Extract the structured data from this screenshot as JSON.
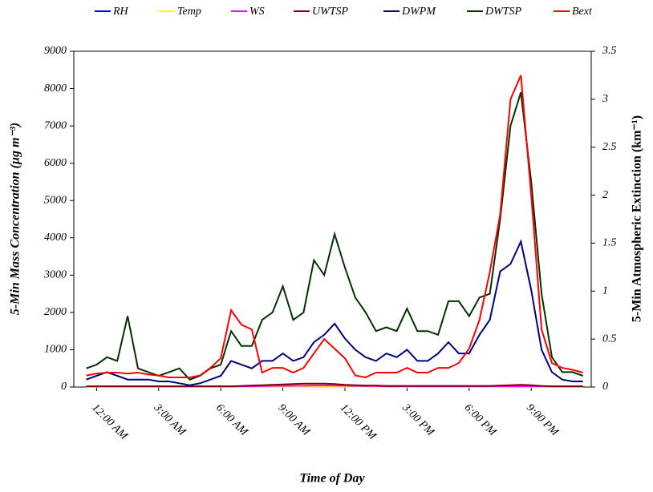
{
  "chart_data": {
    "type": "line",
    "xlabel": "Time of Day",
    "ylabel": "5-Min Mass Concentration (µg m⁻³)",
    "y2label": "5-Min Atmospheric Extinction (km⁻¹)",
    "x": [
      -0.5,
      0,
      0.5,
      1,
      1.5,
      2,
      2.5,
      3,
      3.5,
      4,
      4.5,
      5,
      5.5,
      6,
      6.5,
      7,
      7.5,
      8,
      8.5,
      9,
      9.5,
      10,
      10.5,
      11,
      11.5,
      12,
      12.5,
      13,
      13.5,
      14,
      14.5,
      15,
      15.5,
      16,
      16.5,
      17,
      17.5,
      18,
      18.5,
      19,
      19.5,
      20,
      20.5,
      21,
      21.5,
      22,
      22.5,
      23,
      23.5
    ],
    "xlim": [
      -1.1,
      23.9
    ],
    "xticks": [
      {
        "value": 0,
        "label": "12:00 AM"
      },
      {
        "value": 3,
        "label": "3:00 AM"
      },
      {
        "value": 6,
        "label": "6:00 AM"
      },
      {
        "value": 9,
        "label": "9:00 AM"
      },
      {
        "value": 12,
        "label": "12:00 PM"
      },
      {
        "value": 15,
        "label": "3:00 PM"
      },
      {
        "value": 18,
        "label": "6:00 PM"
      },
      {
        "value": 21,
        "label": "9:00 PM"
      }
    ],
    "ylim": [
      0,
      9000
    ],
    "yticks": [
      0,
      1000,
      2000,
      3000,
      4000,
      5000,
      6000,
      7000,
      8000,
      9000
    ],
    "y2lim": [
      0,
      3.5
    ],
    "y2ticks": [
      0,
      0.5,
      1,
      1.5,
      2,
      2.5,
      3,
      3.5
    ],
    "series": [
      {
        "name": "RH",
        "color": "#0000ff",
        "values": [
          10,
          10,
          10,
          10,
          10,
          10,
          10,
          10,
          10,
          10,
          10,
          10,
          10,
          10,
          10,
          10,
          10,
          10,
          10,
          10,
          10,
          10,
          10,
          10,
          10,
          10,
          10,
          10,
          10,
          10,
          10,
          10,
          10,
          10,
          10,
          10,
          10,
          10,
          10,
          10,
          10,
          10,
          10,
          10,
          10,
          10,
          10,
          10,
          10
        ]
      },
      {
        "name": "Temp",
        "color": "#ffff00",
        "values": [
          5,
          5,
          5,
          5,
          5,
          5,
          5,
          5,
          5,
          5,
          5,
          5,
          5,
          5,
          5,
          5,
          5,
          5,
          5,
          5,
          5,
          5,
          5,
          5,
          5,
          5,
          5,
          5,
          5,
          5,
          5,
          5,
          5,
          5,
          5,
          5,
          5,
          5,
          5,
          5,
          5,
          5,
          5,
          5,
          5,
          5,
          5,
          5,
          5
        ]
      },
      {
        "name": "WS",
        "color": "#ff00ff",
        "values": [
          15,
          15,
          15,
          15,
          15,
          15,
          15,
          15,
          15,
          15,
          15,
          15,
          15,
          15,
          15,
          20,
          20,
          25,
          30,
          30,
          35,
          35,
          40,
          40,
          40,
          35,
          30,
          25,
          25,
          20,
          20,
          20,
          20,
          20,
          20,
          20,
          20,
          20,
          20,
          20,
          20,
          20,
          20,
          20,
          20,
          15,
          15,
          15,
          15
        ]
      },
      {
        "name": "UWTSP",
        "color": "#800000",
        "values": [
          20,
          20,
          20,
          20,
          20,
          20,
          20,
          20,
          20,
          20,
          20,
          20,
          20,
          20,
          20,
          30,
          40,
          50,
          60,
          70,
          80,
          90,
          90,
          90,
          80,
          60,
          50,
          40,
          40,
          30,
          30,
          30,
          30,
          30,
          30,
          30,
          30,
          30,
          30,
          30,
          40,
          50,
          60,
          50,
          30,
          20,
          20,
          20,
          20
        ]
      },
      {
        "name": "DWPM",
        "color": "#000080",
        "values": [
          200,
          300,
          400,
          300,
          200,
          200,
          200,
          150,
          150,
          100,
          50,
          100,
          200,
          300,
          700,
          600,
          500,
          700,
          700,
          900,
          700,
          800,
          1200,
          1400,
          1700,
          1300,
          1000,
          800,
          700,
          900,
          800,
          1000,
          700,
          700,
          900,
          1200,
          900,
          900,
          1400,
          1800,
          3100,
          3300,
          3900,
          2600,
          1000,
          400,
          200,
          150,
          150
        ]
      },
      {
        "name": "DWTSP",
        "color": "#003300",
        "values": [
          500,
          600,
          800,
          700,
          1900,
          500,
          400,
          300,
          400,
          500,
          200,
          300,
          500,
          600,
          1500,
          1100,
          1100,
          1800,
          2000,
          2700,
          1800,
          2000,
          3400,
          3000,
          4100,
          3200,
          2400,
          2000,
          1500,
          1600,
          1500,
          2100,
          1500,
          1500,
          1400,
          2300,
          2300,
          1900,
          2400,
          2500,
          4500,
          7000,
          7900,
          5500,
          2500,
          800,
          400,
          400,
          300
        ]
      },
      {
        "name": "Bext",
        "color": "#ff0000",
        "axis": "y2",
        "values": [
          0.12,
          0.14,
          0.15,
          0.15,
          0.14,
          0.15,
          0.13,
          0.12,
          0.1,
          0.1,
          0.1,
          0.12,
          0.2,
          0.3,
          0.8,
          0.65,
          0.6,
          0.15,
          0.2,
          0.2,
          0.15,
          0.2,
          0.35,
          0.5,
          0.4,
          0.3,
          0.12,
          0.1,
          0.15,
          0.15,
          0.15,
          0.2,
          0.15,
          0.15,
          0.2,
          0.2,
          0.25,
          0.4,
          0.7,
          1.2,
          1.8,
          3.0,
          3.25,
          2.0,
          0.6,
          0.25,
          0.2,
          0.18,
          0.15
        ]
      }
    ]
  }
}
